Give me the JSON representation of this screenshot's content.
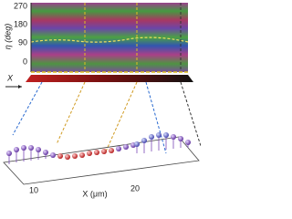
{
  "top_panel": {
    "y_label": "η (deg)",
    "y_ticks": [
      "270",
      "180",
      "90",
      "0"
    ]
  },
  "middle": {
    "axis_label": "X"
  },
  "bottom_panel": {
    "x_ticks": [
      "10",
      "20"
    ],
    "x_label": "X (μm)"
  }
}
